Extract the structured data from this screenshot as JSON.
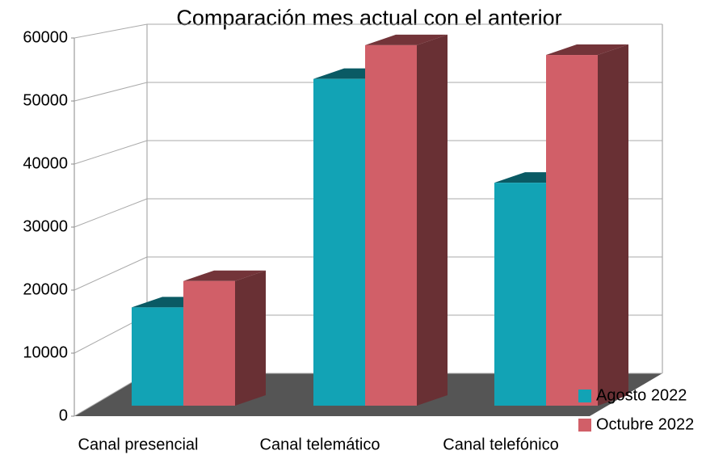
{
  "chart_data": {
    "type": "bar3d",
    "title": "Comparación mes actual con el anterior",
    "categories": [
      "Canal presencial",
      "Canal telemático",
      "Canal telefónico"
    ],
    "series": [
      {
        "name": "Agosto 2022",
        "color": "#12a3b5",
        "values": [
          16000,
          53200,
          36300
        ]
      },
      {
        "name": "Octubre 2022",
        "color": "#d15f68",
        "values": [
          20300,
          58700,
          57100
        ]
      }
    ],
    "ylim": [
      0,
      60000
    ],
    "yticks": [
      0,
      10000,
      20000,
      30000,
      40000,
      50000,
      60000
    ],
    "grid": true,
    "legend": "bottom-right"
  }
}
